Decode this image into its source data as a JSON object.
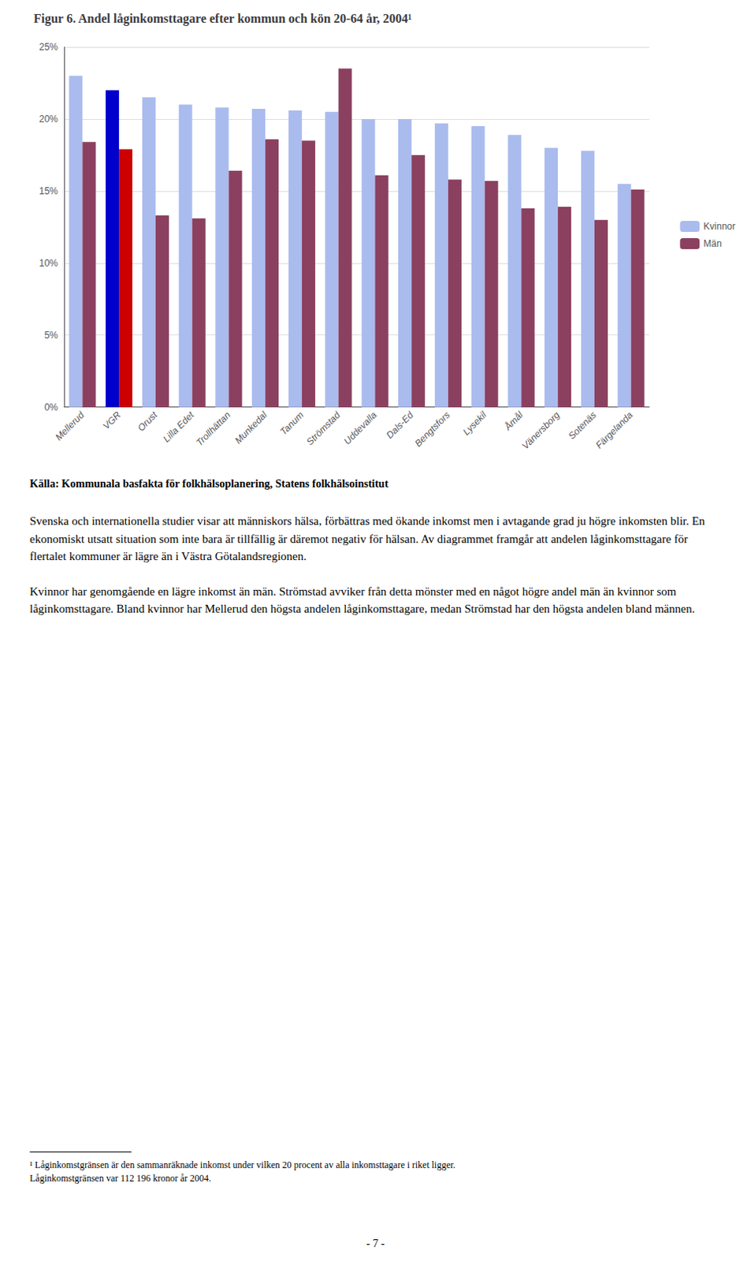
{
  "chart_data": {
    "type": "bar",
    "title": "Figur 6. Andel låginkomsttagare efter kommun och kön 20-64 år, 2004¹",
    "categories": [
      "Mellerud",
      "VGR",
      "Orust",
      "Lilla Edet",
      "Trollhättan",
      "Munkedal",
      "Tanum",
      "Strömstad",
      "Uddevalla",
      "Dals-Ed",
      "Bengtsfors",
      "Lysekil",
      "Åmål",
      "Vänersborg",
      "Sotenäs",
      "Färgelanda"
    ],
    "series": [
      {
        "name": "Kvinnor",
        "color": "#AABBEE",
        "colors": [
          "#AABBEE",
          "#0000CC",
          "#AABBEE",
          "#AABBEE",
          "#AABBEE",
          "#AABBEE",
          "#AABBEE",
          "#AABBEE",
          "#AABBEE",
          "#AABBEE",
          "#AABBEE",
          "#AABBEE",
          "#AABBEE",
          "#AABBEE",
          "#AABBEE",
          "#AABBEE"
        ],
        "values": [
          23.0,
          22.0,
          21.5,
          21.0,
          20.8,
          20.7,
          20.6,
          20.5,
          20.0,
          20.0,
          19.7,
          19.5,
          18.9,
          18.0,
          17.8,
          15.5
        ]
      },
      {
        "name": "Män",
        "color": "#8B4060",
        "colors": [
          "#8B4060",
          "#CC0000",
          "#8B4060",
          "#8B4060",
          "#8B4060",
          "#8B4060",
          "#8B4060",
          "#8B4060",
          "#8B4060",
          "#8B4060",
          "#8B4060",
          "#8B4060",
          "#8B4060",
          "#8B4060",
          "#8B4060",
          "#8B4060"
        ],
        "values": [
          18.4,
          17.9,
          13.3,
          13.1,
          16.4,
          18.6,
          18.5,
          23.5,
          16.1,
          17.5,
          15.8,
          15.7,
          13.8,
          13.9,
          13.0,
          15.1
        ]
      }
    ],
    "ylim": [
      0,
      25
    ],
    "yticks": [
      {
        "value": 0,
        "label": "0%"
      },
      {
        "value": 5,
        "label": "5%"
      },
      {
        "value": 10,
        "label": "10%"
      },
      {
        "value": 15,
        "label": "15%"
      },
      {
        "value": 20,
        "label": "20%"
      },
      {
        "value": 25,
        "label": "25%"
      }
    ],
    "grid": true,
    "legend": "right",
    "source": "Källa: Kommunala basfakta för folkhälsoplanering, Statens folkhälsoinstitut",
    "paragraphs": [
      "Svenska och internationella studier visar att människors hälsa, förbättras med ökande inkomst men i avtagande grad ju högre inkomsten blir. En ekonomiskt utsatt situation som inte bara är tillfällig är däremot negativ för hälsan. Av diagrammet framgår att andelen låginkomsttagare för flertalet kommuner är lägre än i Västra Götalandsregionen.",
      "Kvinnor har genomgående en lägre inkomst än män. Strömstad avviker från detta mönster med en något högre andel män än kvinnor som låginkomsttagare. Bland kvinnor har Mellerud den högsta andelen låginkomsttagare, medan Strömstad har den högsta andelen bland männen."
    ],
    "footnote": "¹ Låginkomstgränsen är den sammanräknade inkomst under vilken 20 procent av alla inkomsttagare i riket ligger.\nLåginkomstgränsen var 112 196 kronor år 2004.",
    "page_number": "- 7 -"
  }
}
